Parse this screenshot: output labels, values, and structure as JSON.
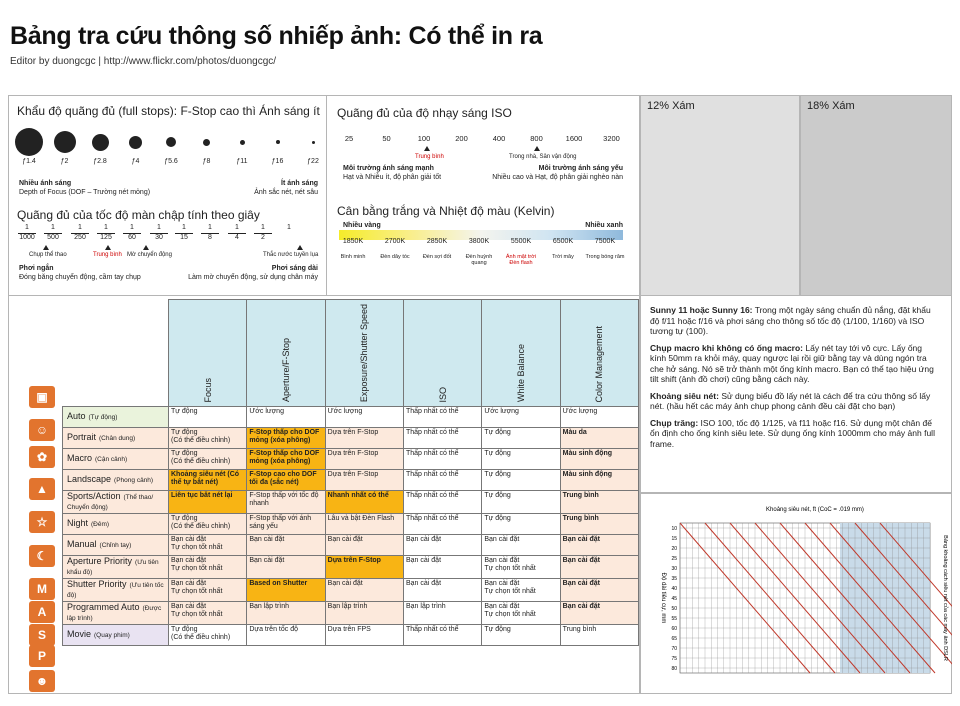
{
  "title": "Bảng tra cứu thông số nhiếp ảnh: Có thể in ra",
  "editor": "Editor by duongcgc | http://www.flickr.com/photos/duongcgc/",
  "aperture": {
    "heading": "Khẩu độ quãng đủ (full stops): F-Stop cao thì Ánh sáng ít",
    "stops": [
      "ƒ1.4",
      "ƒ2",
      "ƒ2.8",
      "ƒ4",
      "ƒ5.6",
      "ƒ8",
      "ƒ11",
      "ƒ16",
      "ƒ22"
    ],
    "left_title": "Nhiều ánh sáng",
    "left_sub": "Depth of Focus (DOF – Trường nét mỏng)",
    "right_title": "Ít ánh sáng",
    "right_sub": "Ảnh sắc nét, nét sâu"
  },
  "shutter": {
    "heading": "Quãng đủ của tốc độ màn chập tính theo giây",
    "nums": [
      "1",
      "1",
      "1",
      "1",
      "1",
      "1",
      "1",
      "1",
      "1",
      "1",
      "1"
    ],
    "dens": [
      "1000",
      "500",
      "250",
      "125",
      "60",
      "30",
      "15",
      "8",
      "4",
      "2",
      ""
    ],
    "note1": "Chụp thể thao",
    "note2": "Trung bình",
    "note3": "Mờ chuyển động",
    "note4": "Thắc nước tuyền lụa",
    "left_title": "Phơi ngắn",
    "left_sub": "Đóng băng chuyển động, cầm tay chụp",
    "right_title": "Phơi sáng dài",
    "right_sub": "Làm mờ chuyển động, sử dụng chân máy"
  },
  "iso": {
    "heading": "Quãng đủ của độ nhạy sáng ISO",
    "values": [
      "25",
      "50",
      "100",
      "200",
      "400",
      "800",
      "1600",
      "3200"
    ],
    "mark1": "Trung bình",
    "mark2": "Trong nhà, Sân vận động",
    "left_title": "Môi trường ánh sáng mạnh",
    "left_sub": "Hạt và Nhiễu ít, độ phân giải tốt",
    "right_title": "Môi trường ánh sáng yếu",
    "right_sub": "Nhiều cao và Hạt, độ phân giải nghèo nàn"
  },
  "wb": {
    "heading": "Cân bằng trắng và Nhiệt độ màu (Kelvin)",
    "left": "Nhiều vàng",
    "right": "Nhiều xanh",
    "kelvins": [
      "1850K",
      "2700K",
      "2850K",
      "3800K",
      "5500K",
      "6500K",
      "7500K"
    ],
    "labels": [
      "Bình minh",
      "Đèn dây tóc",
      "Đèn sợi đốt",
      "Đèn huỳnh quang",
      "Ánh mặt trời Đèn flash",
      "Trời mây",
      "Trong bóng râm"
    ]
  },
  "gray12": "12% Xám",
  "gray18": "18% Xám",
  "columns": [
    "Focus",
    "Aperture/F-Stop",
    "Exposure/Shutter Speed",
    "ISO",
    "White Balance",
    "Color Management"
  ],
  "rows": [
    {
      "name": "Auto",
      "sub": "(Tự động)",
      "cells": [
        "Tự động",
        "Ước lượng",
        "Ước lượng",
        "Thấp nhất có thể",
        "Ước lượng",
        "Ước lượng"
      ]
    },
    {
      "name": "Portrait",
      "sub": "(Chân dung)",
      "cells": [
        "Tự động\n(Có thể điều chỉnh)",
        "F-Stop thấp cho DOF mỏng (xóa phông)",
        "Dựa trên F-Stop",
        "Thấp nhất có thể",
        "Tự động",
        "Màu da"
      ]
    },
    {
      "name": "Macro",
      "sub": "(Cận cảnh)",
      "cells": [
        "Tự động\n(Có thể điều chỉnh)",
        "F-Stop thấp cho DOF mỏng (xóa phông)",
        "Dựa trên F-Stop",
        "Thấp nhất có thể",
        "Tự động",
        "Màu sinh động"
      ]
    },
    {
      "name": "Landscape",
      "sub": "(Phong cảnh)",
      "cells": [
        "Khoảng siêu nét (Có thể tự bắt nét)",
        "F-Stop cao cho DOF tối đa (sắc nét)",
        "Dựa trên F-Stop",
        "Thấp nhất có thể",
        "Tự động",
        "Màu sinh động"
      ]
    },
    {
      "name": "Sports/Action",
      "sub": "(Thể thao/ Chuyển động)",
      "cells": [
        "Liên tục bắt nét lại",
        "F-Stop thấp với tốc độ nhanh",
        "Nhanh nhất có thể",
        "Thấp nhất có thể",
        "Tự động",
        "Trung bình"
      ]
    },
    {
      "name": "Night",
      "sub": "(Đêm)",
      "cells": [
        "Tự động\n(Có thể điều chỉnh)",
        "F-Stop thấp với ánh sáng yếu",
        "Lâu và bật Đèn Flash",
        "Thấp nhất có thể",
        "Tự động",
        "Trung bình"
      ]
    },
    {
      "name": "Manual",
      "sub": "(Chỉnh tay)",
      "cells": [
        "Bạn cài đặt\nTự chọn tốt nhất",
        "Bạn cài đặt",
        "Bạn cài đặt",
        "Bạn cài đặt",
        "Bạn cài đặt",
        "Bạn cài đặt"
      ]
    },
    {
      "name": "Aperture Priority",
      "sub": "(Ưu tiên khẩu độ)",
      "cells": [
        "Bạn cài đặt\nTự chọn tốt nhất",
        "Bạn cài đặt",
        "Dựa trên F-Stop",
        "Bạn cài đặt",
        "Bạn cài đặt\nTự chọn tốt nhất",
        "Bạn cài đặt"
      ]
    },
    {
      "name": "Shutter Priority",
      "sub": "(Ưu tiên tốc độ)",
      "cells": [
        "Bạn cài đặt\nTự chọn tốt nhất",
        "Based on Shutter",
        "Bạn cài đặt",
        "Bạn cài đặt",
        "Bạn cài đặt\nTự chọn tốt nhất",
        "Bạn cài đặt"
      ]
    },
    {
      "name": "Programmed Auto",
      "sub": "(Được lập trình)",
      "cells": [
        "Bạn cài đặt\nTự chọn tốt nhất",
        "Bạn lập trình",
        "Bạn lập trình",
        "Bạn lập trình",
        "Bạn cài đặt\nTự chọn tốt nhất",
        "Bạn cài đặt"
      ]
    },
    {
      "name": "Movie",
      "sub": "(Quay phim)",
      "cells": [
        "Tự động\n(Có thể điều chỉnh)",
        "Dựa trên tốc độ",
        "Dựa trên FPS",
        "Thấp nhất có thể",
        "Tự động",
        "Trung bình"
      ]
    }
  ],
  "icons": [
    "camera-icon",
    "portrait-icon",
    "macro-flower-icon",
    "landscape-mountain-icon",
    "sports-runner-icon",
    "night-moon-icon",
    "M",
    "A",
    "S",
    "P",
    "movie-icon"
  ],
  "tips": [
    {
      "bold": "Sunny 11 hoặc Sunny 16:",
      "text": " Trong một ngày sáng chuẩn đủ nắng, đặt khẩu độ f/11 hoặc f/16 và phơi sáng cho thông số tốc độ (1/100, 1/160) và ISO tương tự (100)."
    },
    {
      "bold": "Chụp macro khi không có ống macro:",
      "text": " Lấy nét tay tới vô cực. Lấy ống kính 50mm ra khỏi máy, quay ngược lại rồi giữ bằng tay và dùng ngón tra che hở sáng. Nó sẽ trở thành một ống kính macro. Bạn có thể tạo hiệu ứng tilt shift (ảnh đồ chơi) cũng bằng cách này."
    },
    {
      "bold": "Khoảng siêu nét:",
      "text": " Sử dụng biểu đồ lấy nét là cách để tra cứu thông số lấy nét. (hầu hết các máy ảnh chụp phong cảnh đều cài đặt cho bạn)"
    },
    {
      "bold": "Chụp trăng:",
      "text": " ISO 100, tốc độ 1/125, và f11 hoặc f16. Sử dụng một chân đế ổn định cho ống kính siêu lete. Sử dụng ống kính 1000mm cho máy ảnh full frame."
    }
  ],
  "hyper": {
    "title": "Khoảng siêu nét, ft (CoC = .019 mm)",
    "yleft": "Độ dài tiêu cự, mm",
    "yright": "Bảng khoảng cách siêu nét của các máy ảnh DSLR",
    "ticks": [
      "10",
      "15",
      "20",
      "25",
      "30",
      "35",
      "40",
      "45",
      "50",
      "55",
      "60",
      "65",
      "70",
      "75",
      "80"
    ]
  }
}
